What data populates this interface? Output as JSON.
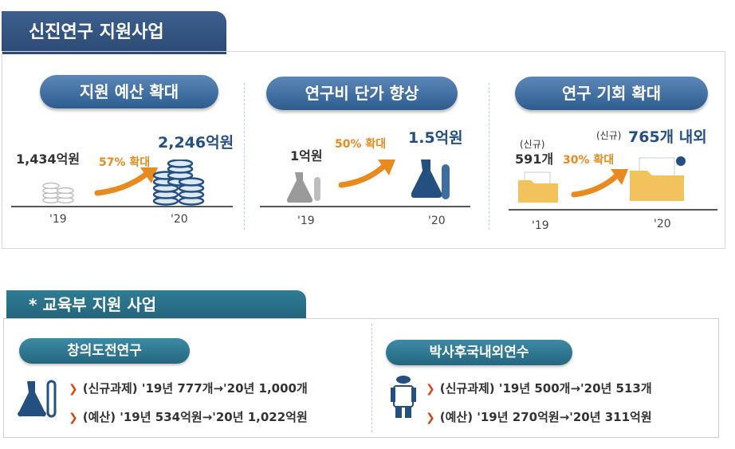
{
  "title": "신진연구 지원사업",
  "panels": [
    {
      "label": "지원 예산 확대",
      "before_value": "1,434억원",
      "increase": "57% 확대",
      "after_value": "2,246억원",
      "year_before": "'19",
      "year_after": "'20",
      "icon": "coin-stack-icon"
    },
    {
      "label": "연구비 단가 향상",
      "before_value": "1억원",
      "increase": "50% 확대",
      "after_value": "1.5억원",
      "year_before": "'19",
      "year_after": "'20",
      "icon": "flask-icon"
    },
    {
      "label": "연구 기회 확대",
      "before_prefix": "(신규)",
      "before_value": "591개",
      "increase": "30% 확대",
      "after_prefix": "(신규)",
      "after_value": "765개 내외",
      "year_before": "'19",
      "year_after": "'20",
      "icon": "folder-icon"
    }
  ],
  "education": {
    "title": "* 교육부 지원 사업",
    "programs": [
      {
        "label": "창의도전연구",
        "lines": [
          "(신규과제) '19년 777개→'20년 1,000개",
          "(예산) '19년 534억원→'20년 1,022억원"
        ],
        "icon": "test-tube-flask-icon"
      },
      {
        "label": "박사후국내외연수",
        "lines": [
          "(신규과제) '19년 500개→'20년 513개",
          "(예산) '19년 270억원→'20년 311억원"
        ],
        "icon": "researcher-icon"
      }
    ]
  },
  "colors": {
    "navy": "#2f5c8f",
    "teal": "#24667e",
    "orange": "#e88a20",
    "blue_text": "#244f80"
  }
}
